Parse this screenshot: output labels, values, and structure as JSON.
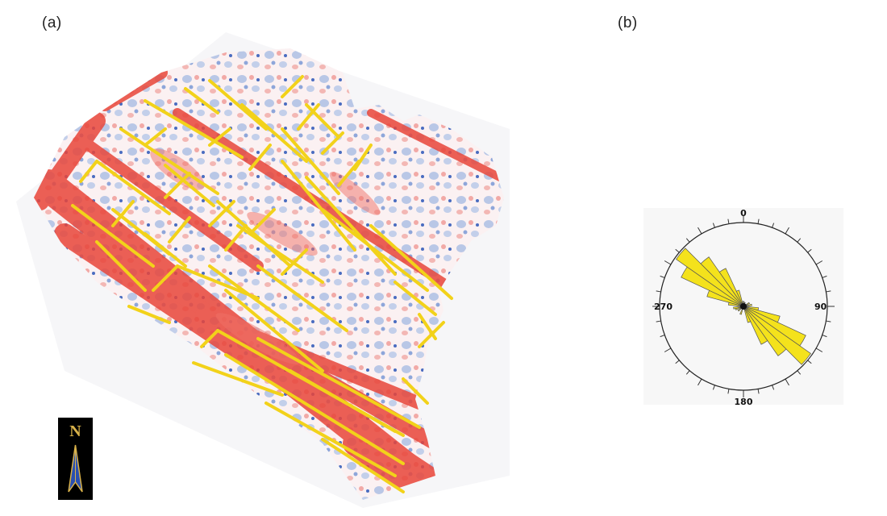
{
  "panels": {
    "a": {
      "label": "(a)"
    },
    "b": {
      "label": "(b)"
    }
  },
  "north_arrow": {
    "letter": "N",
    "icon": "north-arrow-icon"
  },
  "rose": {
    "labels": {
      "top": "0",
      "right": "90",
      "bottom": "180",
      "left": "270"
    }
  },
  "colors": {
    "lineaments": "#f2d21a",
    "attribute_high": "#e83a2a",
    "attribute_low": "#3b5fb0",
    "rose_petal": "#f4e21c"
  }
}
